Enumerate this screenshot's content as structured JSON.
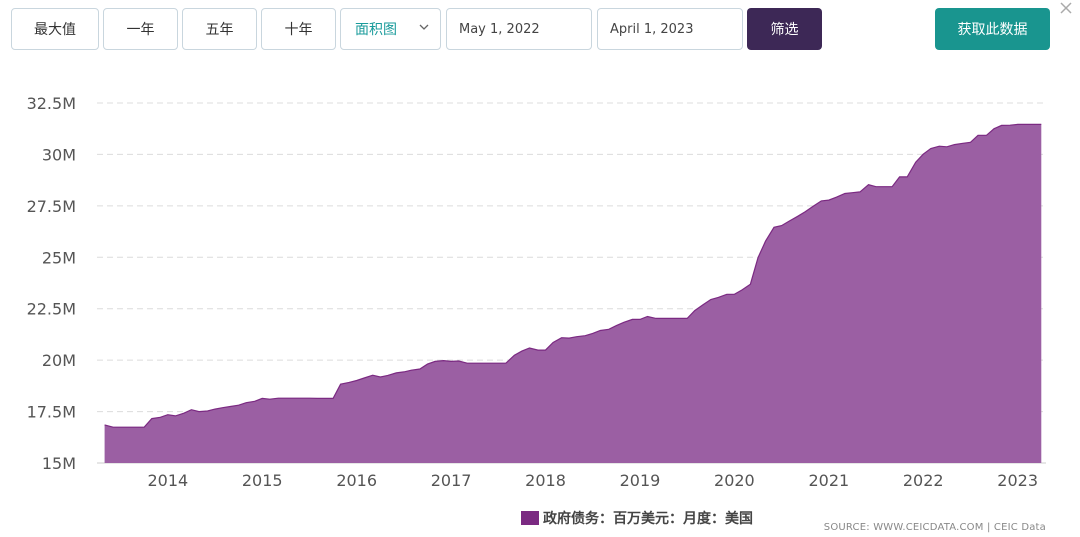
{
  "toolbar": {
    "range_buttons": [
      "最大值",
      "一年",
      "五年",
      "十年"
    ],
    "chart_type": "面积图",
    "date_from": "May 1, 2022",
    "date_to": "April 1, 2023",
    "filter_label": "筛选",
    "get_data_label": "获取此数据"
  },
  "source": "SOURCE: WWW.CEICDATA.COM | CEIC Data",
  "chart_data": {
    "type": "area",
    "title": "",
    "xlabel": "",
    "ylabel": "",
    "color": "#7b2a82",
    "fill_color": "#9b5fa3",
    "ylim": [
      15,
      32.5
    ],
    "y_ticks": [
      15,
      17.5,
      20,
      22.5,
      25,
      27.5,
      30,
      32.5
    ],
    "y_tick_labels": [
      "15M",
      "17.5M",
      "20M",
      "22.5M",
      "25M",
      "27.5M",
      "30M",
      "32.5M"
    ],
    "xlim": [
      2013.25,
      2023.3
    ],
    "x_ticks": [
      2014,
      2015,
      2016,
      2017,
      2018,
      2019,
      2020,
      2021,
      2022,
      2023
    ],
    "x_tick_labels": [
      "2014",
      "2015",
      "2016",
      "2017",
      "2018",
      "2019",
      "2020",
      "2021",
      "2022",
      "2023"
    ],
    "legend": "top-bottom-center",
    "series": [
      {
        "name": "政府债务：百万美元：月度：美国",
        "unit": "M",
        "points": [
          [
            2013.33,
            16.85
          ],
          [
            2013.42,
            16.74
          ],
          [
            2013.5,
            16.74
          ],
          [
            2013.58,
            16.74
          ],
          [
            2013.67,
            16.74
          ],
          [
            2013.75,
            16.74
          ],
          [
            2013.83,
            17.16
          ],
          [
            2013.92,
            17.22
          ],
          [
            2014.0,
            17.35
          ],
          [
            2014.08,
            17.29
          ],
          [
            2014.17,
            17.42
          ],
          [
            2014.25,
            17.59
          ],
          [
            2014.33,
            17.5
          ],
          [
            2014.42,
            17.53
          ],
          [
            2014.5,
            17.62
          ],
          [
            2014.58,
            17.69
          ],
          [
            2014.67,
            17.75
          ],
          [
            2014.75,
            17.81
          ],
          [
            2014.83,
            17.93
          ],
          [
            2014.92,
            18.0
          ],
          [
            2015.0,
            18.14
          ],
          [
            2015.08,
            18.1
          ],
          [
            2015.17,
            18.15
          ],
          [
            2015.25,
            18.15
          ],
          [
            2015.33,
            18.15
          ],
          [
            2015.42,
            18.15
          ],
          [
            2015.5,
            18.15
          ],
          [
            2015.58,
            18.14
          ],
          [
            2015.67,
            18.14
          ],
          [
            2015.75,
            18.14
          ],
          [
            2015.83,
            18.83
          ],
          [
            2015.92,
            18.92
          ],
          [
            2016.0,
            19.01
          ],
          [
            2016.08,
            19.13
          ],
          [
            2016.17,
            19.27
          ],
          [
            2016.25,
            19.18
          ],
          [
            2016.33,
            19.26
          ],
          [
            2016.42,
            19.38
          ],
          [
            2016.5,
            19.43
          ],
          [
            2016.58,
            19.51
          ],
          [
            2016.67,
            19.57
          ],
          [
            2016.75,
            19.81
          ],
          [
            2016.83,
            19.94
          ],
          [
            2016.92,
            19.98
          ],
          [
            2017.0,
            19.94
          ],
          [
            2017.08,
            19.96
          ],
          [
            2017.17,
            19.85
          ],
          [
            2017.25,
            19.85
          ],
          [
            2017.33,
            19.85
          ],
          [
            2017.42,
            19.85
          ],
          [
            2017.5,
            19.85
          ],
          [
            2017.58,
            19.85
          ],
          [
            2017.67,
            20.24
          ],
          [
            2017.75,
            20.44
          ],
          [
            2017.83,
            20.59
          ],
          [
            2017.92,
            20.49
          ],
          [
            2018.0,
            20.49
          ],
          [
            2018.08,
            20.86
          ],
          [
            2018.17,
            21.09
          ],
          [
            2018.25,
            21.07
          ],
          [
            2018.33,
            21.14
          ],
          [
            2018.42,
            21.19
          ],
          [
            2018.5,
            21.3
          ],
          [
            2018.58,
            21.44
          ],
          [
            2018.67,
            21.5
          ],
          [
            2018.75,
            21.68
          ],
          [
            2018.83,
            21.84
          ],
          [
            2018.92,
            21.98
          ],
          [
            2019.0,
            21.98
          ],
          [
            2019.08,
            22.12
          ],
          [
            2019.17,
            22.03
          ],
          [
            2019.25,
            22.03
          ],
          [
            2019.33,
            22.03
          ],
          [
            2019.42,
            22.03
          ],
          [
            2019.5,
            22.03
          ],
          [
            2019.58,
            22.41
          ],
          [
            2019.67,
            22.7
          ],
          [
            2019.75,
            22.95
          ],
          [
            2019.83,
            23.05
          ],
          [
            2019.92,
            23.2
          ],
          [
            2020.0,
            23.2
          ],
          [
            2020.08,
            23.41
          ],
          [
            2020.17,
            23.69
          ],
          [
            2020.25,
            24.98
          ],
          [
            2020.33,
            25.78
          ],
          [
            2020.42,
            26.46
          ],
          [
            2020.5,
            26.54
          ],
          [
            2020.58,
            26.76
          ],
          [
            2020.67,
            26.99
          ],
          [
            2020.75,
            27.21
          ],
          [
            2020.83,
            27.47
          ],
          [
            2020.92,
            27.74
          ],
          [
            2021.0,
            27.78
          ],
          [
            2021.08,
            27.92
          ],
          [
            2021.17,
            28.1
          ],
          [
            2021.25,
            28.14
          ],
          [
            2021.33,
            28.18
          ],
          [
            2021.42,
            28.53
          ],
          [
            2021.5,
            28.43
          ],
          [
            2021.58,
            28.43
          ],
          [
            2021.67,
            28.43
          ],
          [
            2021.75,
            28.91
          ],
          [
            2021.83,
            28.91
          ],
          [
            2021.92,
            29.62
          ],
          [
            2022.0,
            30.01
          ],
          [
            2022.08,
            30.29
          ],
          [
            2022.17,
            30.4
          ],
          [
            2022.25,
            30.37
          ],
          [
            2022.33,
            30.48
          ],
          [
            2022.42,
            30.54
          ],
          [
            2022.5,
            30.59
          ],
          [
            2022.58,
            30.93
          ],
          [
            2022.67,
            30.93
          ],
          [
            2022.75,
            31.25
          ],
          [
            2022.83,
            31.41
          ],
          [
            2022.92,
            31.42
          ],
          [
            2023.0,
            31.46
          ],
          [
            2023.08,
            31.46
          ],
          [
            2023.17,
            31.46
          ],
          [
            2023.25,
            31.46
          ]
        ]
      }
    ]
  }
}
